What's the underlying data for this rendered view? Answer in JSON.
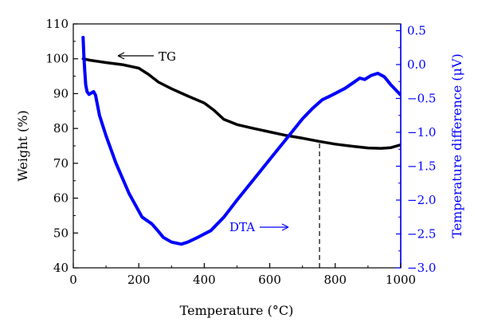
{
  "colors": {
    "tg": "#000000",
    "dta": "#0000ff",
    "frame": "#000000"
  },
  "chart_data": {
    "type": "line",
    "grid": false,
    "legend": "none",
    "xlabel": "Temperature (°C)",
    "ylabel_left": "Weight (%)",
    "ylabel_right": "Temperature difference (μV)",
    "xlim": [
      0,
      1000
    ],
    "ylim_left": [
      40,
      110
    ],
    "ylim_right": [
      -3.0,
      0.6
    ],
    "x_ticks": [
      "0",
      "200",
      "400",
      "600",
      "800",
      "1000"
    ],
    "y_left_ticks": [
      "40",
      "50",
      "60",
      "70",
      "80",
      "90",
      "100",
      "110"
    ],
    "y_right_ticks": [
      "0.5",
      "0.0",
      "−0.5",
      "−1.0",
      "−1.5",
      "−2.0",
      "−2.5",
      "−3.0"
    ],
    "annotations": {
      "tg_label": "TG",
      "dta_label": "DTA"
    },
    "dashed_line_x": 752,
    "series": [
      {
        "name": "TG",
        "axis": "left",
        "x": [
          30,
          50,
          100,
          150,
          200,
          230,
          260,
          300,
          350,
          400,
          430,
          460,
          500,
          550,
          600,
          650,
          700,
          750,
          800,
          850,
          900,
          940,
          970,
          1000
        ],
        "y": [
          100.0,
          99.6,
          98.9,
          98.3,
          97.3,
          95.5,
          93.3,
          91.4,
          89.3,
          87.3,
          85.2,
          82.6,
          81.1,
          80.0,
          79.0,
          78.0,
          77.2,
          76.3,
          75.5,
          74.9,
          74.4,
          74.3,
          74.5,
          75.3
        ]
      },
      {
        "name": "DTA",
        "axis": "right",
        "x": [
          30,
          32,
          35,
          38,
          42,
          48,
          55,
          62,
          68,
          80,
          100,
          130,
          170,
          210,
          240,
          258,
          275,
          300,
          330,
          350,
          380,
          420,
          460,
          500,
          550,
          600,
          650,
          700,
          730,
          760,
          790,
          830,
          860,
          875,
          890,
          910,
          930,
          950,
          970,
          1000
        ],
        "y": [
          0.4,
          0.15,
          -0.1,
          -0.3,
          -0.4,
          -0.44,
          -0.42,
          -0.4,
          -0.45,
          -0.75,
          -1.05,
          -1.45,
          -1.9,
          -2.25,
          -2.35,
          -2.45,
          -2.55,
          -2.62,
          -2.65,
          -2.62,
          -2.55,
          -2.45,
          -2.25,
          -2.0,
          -1.7,
          -1.4,
          -1.1,
          -0.8,
          -0.65,
          -0.52,
          -0.45,
          -0.35,
          -0.25,
          -0.2,
          -0.22,
          -0.16,
          -0.13,
          -0.18,
          -0.3,
          -0.45
        ]
      }
    ]
  }
}
